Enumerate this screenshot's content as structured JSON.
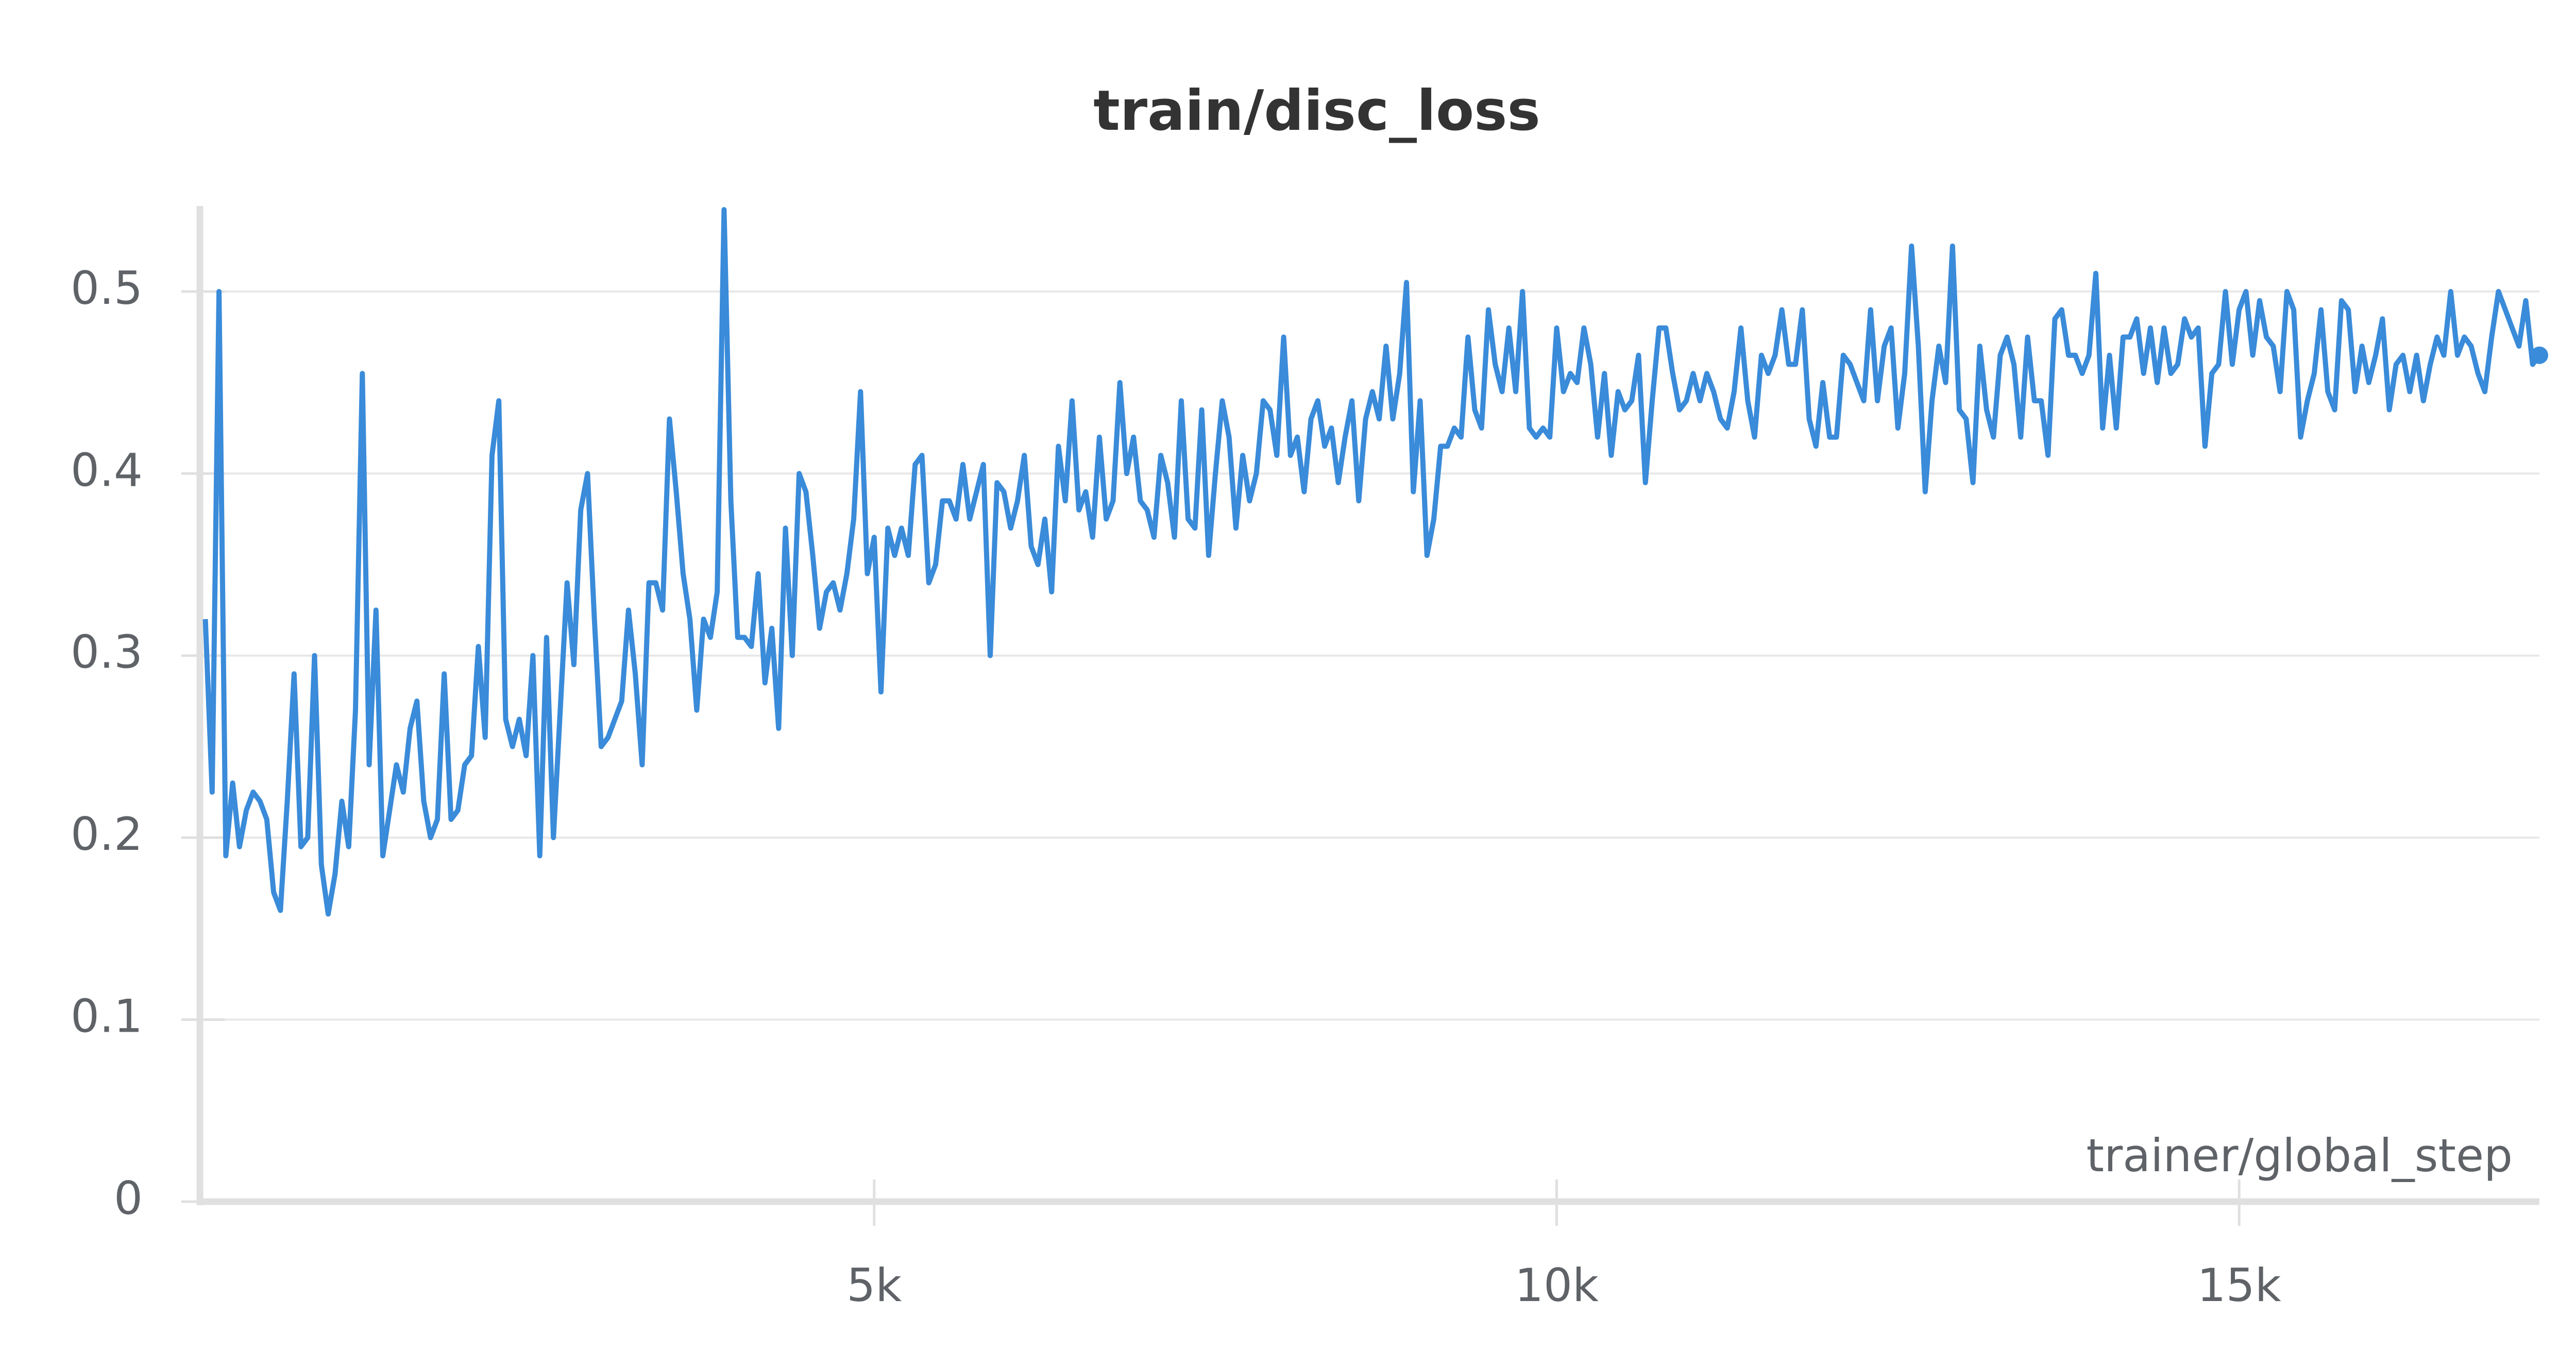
{
  "chart_data": {
    "type": "line",
    "title": "train/disc_loss",
    "x_label": "trainer/global_step",
    "xlim": [
      60,
      17200
    ],
    "ylim": [
      0,
      0.545
    ],
    "xticks": [
      {
        "value": 5000,
        "label": "5k"
      },
      {
        "value": 10000,
        "label": "10k"
      },
      {
        "value": 15000,
        "label": "15k"
      }
    ],
    "yticks": [
      0,
      0.1,
      0.2,
      0.3,
      0.4,
      0.5
    ],
    "grid": true,
    "end_marker": true,
    "x": [
      100,
      150,
      200,
      250,
      300,
      350,
      400,
      450,
      500,
      550,
      600,
      650,
      700,
      750,
      800,
      850,
      900,
      950,
      1000,
      1050,
      1100,
      1150,
      1200,
      1250,
      1300,
      1350,
      1400,
      1450,
      1500,
      1550,
      1600,
      1650,
      1700,
      1750,
      1800,
      1850,
      1900,
      1950,
      2000,
      2050,
      2100,
      2150,
      2200,
      2250,
      2300,
      2350,
      2400,
      2450,
      2500,
      2550,
      2600,
      2650,
      2700,
      2750,
      2800,
      2850,
      2900,
      2950,
      3000,
      3050,
      3100,
      3150,
      3200,
      3250,
      3300,
      3350,
      3400,
      3450,
      3500,
      3550,
      3600,
      3650,
      3700,
      3750,
      3800,
      3850,
      3900,
      3950,
      4000,
      4050,
      4100,
      4150,
      4200,
      4250,
      4300,
      4350,
      4400,
      4450,
      4500,
      4550,
      4600,
      4650,
      4700,
      4750,
      4800,
      4850,
      4900,
      4950,
      5000,
      5050,
      5100,
      5150,
      5200,
      5250,
      5300,
      5350,
      5400,
      5450,
      5500,
      5550,
      5600,
      5650,
      5700,
      5750,
      5800,
      5850,
      5900,
      5950,
      6000,
      6050,
      6100,
      6150,
      6200,
      6250,
      6300,
      6350,
      6400,
      6450,
      6500,
      6550,
      6600,
      6650,
      6700,
      6750,
      6800,
      6850,
      6900,
      6950,
      7000,
      7050,
      7100,
      7150,
      7200,
      7250,
      7300,
      7350,
      7400,
      7450,
      7500,
      7550,
      7600,
      7650,
      7700,
      7750,
      7800,
      7850,
      7900,
      7950,
      8000,
      8050,
      8100,
      8150,
      8200,
      8250,
      8300,
      8350,
      8400,
      8450,
      8500,
      8550,
      8600,
      8650,
      8700,
      8750,
      8800,
      8850,
      8900,
      8950,
      9000,
      9050,
      9100,
      9150,
      9200,
      9250,
      9300,
      9350,
      9400,
      9450,
      9500,
      9550,
      9600,
      9650,
      9700,
      9750,
      9800,
      9850,
      9900,
      9950,
      10000,
      10050,
      10100,
      10150,
      10200,
      10250,
      10300,
      10350,
      10400,
      10450,
      10500,
      10550,
      10600,
      10650,
      10700,
      10750,
      10800,
      10850,
      10900,
      10950,
      11000,
      11050,
      11100,
      11150,
      11200,
      11250,
      11300,
      11350,
      11400,
      11450,
      11500,
      11550,
      11600,
      11650,
      11700,
      11750,
      11800,
      11850,
      11900,
      11950,
      12000,
      12050,
      12100,
      12150,
      12200,
      12250,
      12300,
      12350,
      12400,
      12450,
      12500,
      12550,
      12600,
      12650,
      12700,
      12750,
      12800,
      12850,
      12900,
      12950,
      13000,
      13050,
      13100,
      13150,
      13200,
      13250,
      13300,
      13350,
      13400,
      13450,
      13500,
      13550,
      13600,
      13650,
      13700,
      13750,
      13800,
      13850,
      13900,
      13950,
      14000,
      14050,
      14100,
      14150,
      14200,
      14250,
      14300,
      14350,
      14400,
      14450,
      14500,
      14550,
      14600,
      14650,
      14700,
      14750,
      14800,
      14850,
      14900,
      14950,
      15000,
      15050,
      15100,
      15150,
      15200,
      15250,
      15300,
      15350,
      15400,
      15450,
      15500,
      15550,
      15600,
      15650,
      15700,
      15750,
      15800,
      15850,
      15900,
      15950,
      16000,
      16050,
      16100,
      16150,
      16200,
      16250,
      16300,
      16350,
      16400,
      16450,
      16500,
      16550,
      16600,
      16650,
      16700,
      16750,
      16800,
      16850,
      16900,
      16950,
      17000,
      17050,
      17100,
      17150,
      17200
    ],
    "series": [
      {
        "color": "#3a8bd9",
        "values": [
          0.32,
          0.225,
          0.5,
          0.19,
          0.23,
          0.195,
          0.215,
          0.225,
          0.22,
          0.21,
          0.17,
          0.16,
          0.22,
          0.29,
          0.195,
          0.2,
          0.3,
          0.185,
          0.158,
          0.18,
          0.22,
          0.195,
          0.27,
          0.455,
          0.24,
          0.325,
          0.19,
          0.215,
          0.24,
          0.225,
          0.26,
          0.275,
          0.22,
          0.2,
          0.21,
          0.29,
          0.21,
          0.215,
          0.24,
          0.245,
          0.305,
          0.255,
          0.41,
          0.44,
          0.265,
          0.25,
          0.265,
          0.245,
          0.3,
          0.19,
          0.31,
          0.2,
          0.27,
          0.34,
          0.295,
          0.38,
          0.4,
          0.32,
          0.25,
          0.255,
          0.265,
          0.275,
          0.325,
          0.29,
          0.24,
          0.34,
          0.34,
          0.325,
          0.43,
          0.39,
          0.345,
          0.32,
          0.27,
          0.32,
          0.31,
          0.335,
          0.545,
          0.385,
          0.31,
          0.31,
          0.305,
          0.345,
          0.285,
          0.315,
          0.26,
          0.37,
          0.3,
          0.4,
          0.39,
          0.355,
          0.315,
          0.335,
          0.34,
          0.325,
          0.345,
          0.375,
          0.445,
          0.345,
          0.365,
          0.28,
          0.37,
          0.355,
          0.37,
          0.355,
          0.405,
          0.41,
          0.34,
          0.35,
          0.385,
          0.385,
          0.375,
          0.405,
          0.375,
          0.39,
          0.405,
          0.3,
          0.395,
          0.39,
          0.37,
          0.385,
          0.41,
          0.36,
          0.35,
          0.375,
          0.335,
          0.415,
          0.385,
          0.44,
          0.38,
          0.39,
          0.365,
          0.42,
          0.375,
          0.385,
          0.45,
          0.4,
          0.42,
          0.385,
          0.38,
          0.365,
          0.41,
          0.395,
          0.365,
          0.44,
          0.375,
          0.37,
          0.435,
          0.355,
          0.4,
          0.44,
          0.42,
          0.37,
          0.41,
          0.385,
          0.4,
          0.44,
          0.435,
          0.41,
          0.475,
          0.41,
          0.42,
          0.39,
          0.43,
          0.44,
          0.415,
          0.425,
          0.395,
          0.42,
          0.44,
          0.385,
          0.43,
          0.445,
          0.43,
          0.47,
          0.43,
          0.455,
          0.505,
          0.39,
          0.44,
          0.355,
          0.375,
          0.415,
          0.415,
          0.425,
          0.42,
          0.475,
          0.435,
          0.425,
          0.49,
          0.46,
          0.445,
          0.48,
          0.445,
          0.5,
          0.425,
          0.42,
          0.425,
          0.42,
          0.48,
          0.445,
          0.455,
          0.45,
          0.48,
          0.46,
          0.42,
          0.455,
          0.41,
          0.445,
          0.435,
          0.44,
          0.465,
          0.395,
          0.44,
          0.48,
          0.48,
          0.455,
          0.435,
          0.44,
          0.455,
          0.44,
          0.455,
          0.445,
          0.43,
          0.425,
          0.445,
          0.48,
          0.44,
          0.42,
          0.465,
          0.455,
          0.465,
          0.49,
          0.46,
          0.46,
          0.49,
          0.43,
          0.415,
          0.45,
          0.42,
          0.42,
          0.465,
          0.46,
          0.45,
          0.44,
          0.49,
          0.44,
          0.47,
          0.48,
          0.425,
          0.455,
          0.525,
          0.47,
          0.39,
          0.44,
          0.47,
          0.45,
          0.525,
          0.435,
          0.43,
          0.395,
          0.47,
          0.435,
          0.42,
          0.465,
          0.475,
          0.46,
          0.42,
          0.475,
          0.44,
          0.44,
          0.41,
          0.485,
          0.49,
          0.465,
          0.465,
          0.455,
          0.465,
          0.51,
          0.425,
          0.465,
          0.425,
          0.475,
          0.475,
          0.485,
          0.455,
          0.48,
          0.45,
          0.48,
          0.455,
          0.46,
          0.485,
          0.475,
          0.48,
          0.415,
          0.455,
          0.46,
          0.5,
          0.46,
          0.49,
          0.5,
          0.465,
          0.495,
          0.475,
          0.47,
          0.445,
          0.5,
          0.49,
          0.42,
          0.44,
          0.455,
          0.49,
          0.445,
          0.435,
          0.495,
          0.49,
          0.445,
          0.47,
          0.45,
          0.465,
          0.485,
          0.435,
          0.46,
          0.465,
          0.445,
          0.465,
          0.44,
          0.46,
          0.475,
          0.465,
          0.5,
          0.465,
          0.475,
          0.47,
          0.455,
          0.445,
          0.475,
          0.5,
          0.49,
          0.48,
          0.47,
          0.495,
          0.46,
          0.465
        ]
      }
    ]
  }
}
